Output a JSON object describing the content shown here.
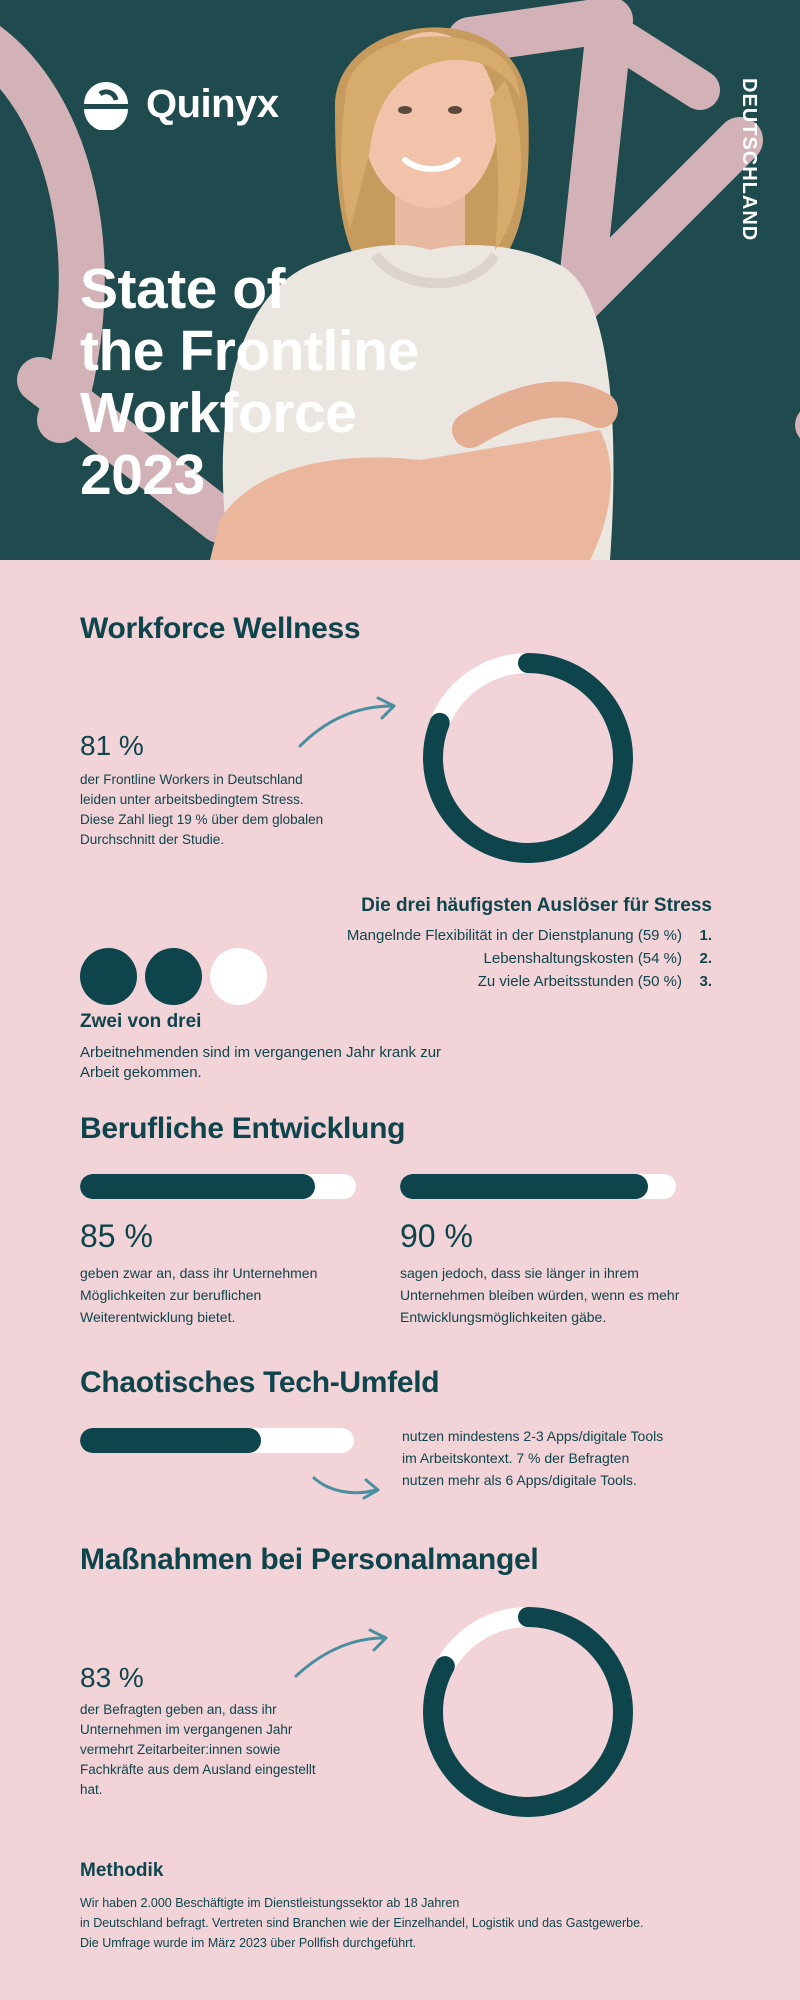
{
  "hero": {
    "brand": "Quinyx",
    "country": "DEUTSCHLAND",
    "title_lines": [
      "State of",
      "the Frontline",
      "Workforce",
      "2023"
    ]
  },
  "wellness": {
    "heading": "Workforce Wellness",
    "stat": "81 %",
    "stat_fraction": 0.81,
    "description": "der Frontline Workers in Deutschland leiden unter arbeitsbedingtem Stress. Diese Zahl liegt 19 % über dem globalen Durchschnitt der Studie.",
    "triggers_title": "Die drei häufigsten Auslöser für Stress",
    "triggers": [
      {
        "label": "Mangelnde Flexibilität in der Dienstplanung (59 %)",
        "rank": "1."
      },
      {
        "label": "Lebenshaltungskosten (54 %)",
        "rank": "2."
      },
      {
        "label": "Zu viele Arbeitsstunden (50 %)",
        "rank": "3."
      }
    ],
    "dots_filled": 2,
    "dots_total": 3,
    "two_of_three": "Zwei von drei",
    "sick_text": "Arbeitnehmenden sind im vergangenen Jahr krank zur Arbeit gekommen."
  },
  "development": {
    "heading": "Berufliche Entwicklung",
    "items": [
      {
        "stat": "85 %",
        "fraction": 0.85,
        "text": "geben zwar an, dass ihr Unternehmen Möglichkeiten zur beruflichen Weiterentwicklung bietet."
      },
      {
        "stat": "90 %",
        "fraction": 0.9,
        "text": "sagen jedoch, dass sie länger in ihrem Unternehmen bleiben würden, wenn es mehr Entwicklungsmöglichkeiten gäbe."
      }
    ]
  },
  "tech": {
    "heading": "Chaotisches Tech-Umfeld",
    "fraction": 0.66,
    "text": "nutzen mindestens 2-3 Apps/digitale Tools im Arbeitskontext. 7 % der Befragten nutzen mehr als 6 Apps/digitale Tools."
  },
  "shortage": {
    "heading": "Maßnahmen bei Personalmangel",
    "stat": "83 %",
    "stat_fraction": 0.83,
    "description": "der Befragten geben an, dass ihr Unternehmen im vergangenen Jahr vermehrt Zeitarbeiter:innen sowie Fachkräfte aus dem Ausland eingestellt hat."
  },
  "methodik": {
    "heading": "Methodik",
    "lines": [
      "Wir haben 2.000 Beschäftigte im Dienstleistungssektor ab 18 Jahren",
      "in Deutschland befragt. Vertreten sind Branchen wie der Einzelhandel, Logistik und das Gastgewerbe.",
      "Die Umfrage wurde im März 2023 über Pollfish durchgeführt."
    ]
  },
  "colors": {
    "teal": "#0e454d",
    "pink": "#f2d3d7",
    "hero_bg": "#1f4a4e",
    "accent_arrow": "#4a8fa0"
  }
}
